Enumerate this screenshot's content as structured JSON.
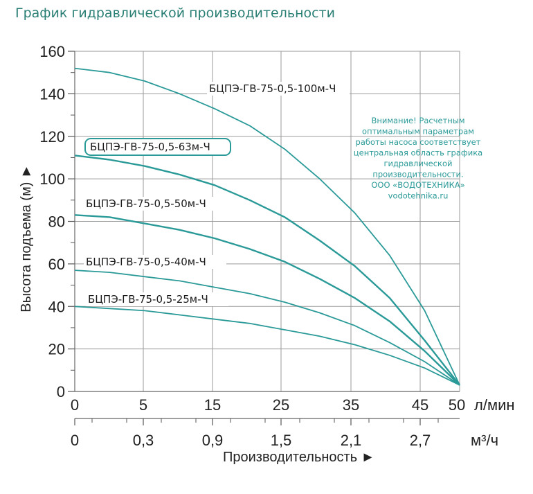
{
  "page_title": "График гидравлической производительности",
  "note": [
    "Внимание! Расчетным",
    "оптимальным параметрам",
    "работы насоса соответствует",
    "центральная область графика",
    "гидравлической",
    "производительности.",
    "ООО «ВОДОТЕХНИКА»",
    "vodotehnika.ru"
  ],
  "colors": {
    "curve": "#2a9a98",
    "title": "#2a7f75",
    "highlight_border": "#2a9a98"
  },
  "chart_data": {
    "type": "line",
    "ylabel": "Высота подъема (м) ►",
    "xlabel": "Производительность ►",
    "x_unit_primary": "л/мин",
    "x_unit_secondary": "м³/ч",
    "ylim": [
      0,
      160
    ],
    "y_ticks": [
      "0",
      "20",
      "40",
      "60",
      "80",
      "100",
      "120",
      "140",
      "160"
    ],
    "x_ticks_primary": [
      "0",
      "5",
      "15",
      "25",
      "35",
      "45",
      "50"
    ],
    "x_ticks_secondary": [
      "0",
      "0,3",
      "0,9",
      "1,5",
      "2,1",
      "2,7"
    ],
    "grid": true,
    "highlighted_series": "БЦПЭ-ГВ-75-0,5-63м-Ч",
    "series": [
      {
        "name": "БЦПЭ-ГВ-75-0,5-100м-Ч",
        "x": [
          0,
          5,
          10,
          15,
          20,
          25,
          30,
          35,
          40,
          45,
          50,
          55
        ],
        "y": [
          152,
          150,
          146,
          140,
          133,
          125,
          114,
          100,
          84,
          64,
          38,
          3
        ]
      },
      {
        "name": "БЦПЭ-ГВ-75-0,5-63м-Ч",
        "x": [
          0,
          5,
          10,
          15,
          20,
          25,
          30,
          35,
          40,
          45,
          50,
          55
        ],
        "y": [
          111,
          109,
          106,
          102,
          97,
          90,
          82,
          71,
          59,
          44,
          24,
          3
        ]
      },
      {
        "name": "БЦПЭ-ГВ-75-0,5-50м-Ч",
        "x": [
          0,
          5,
          10,
          15,
          20,
          25,
          30,
          35,
          40,
          45,
          50,
          55
        ],
        "y": [
          83,
          82,
          79,
          76,
          72,
          67,
          61,
          53,
          44,
          33,
          19,
          3
        ]
      },
      {
        "name": "БЦПЭ-ГВ-75-0,5-40м-Ч",
        "x": [
          0,
          5,
          10,
          15,
          20,
          25,
          30,
          35,
          40,
          45,
          50,
          55
        ],
        "y": [
          57,
          56,
          54,
          52,
          49,
          46,
          42,
          37,
          31,
          23,
          14,
          3
        ]
      },
      {
        "name": "БЦПЭ-ГВ-75-0,5-25м-Ч",
        "x": [
          0,
          5,
          10,
          15,
          20,
          25,
          30,
          35,
          40,
          45,
          50,
          55
        ],
        "y": [
          40,
          39,
          38,
          36,
          34,
          32,
          29,
          26,
          22,
          17,
          11,
          3
        ]
      }
    ]
  }
}
